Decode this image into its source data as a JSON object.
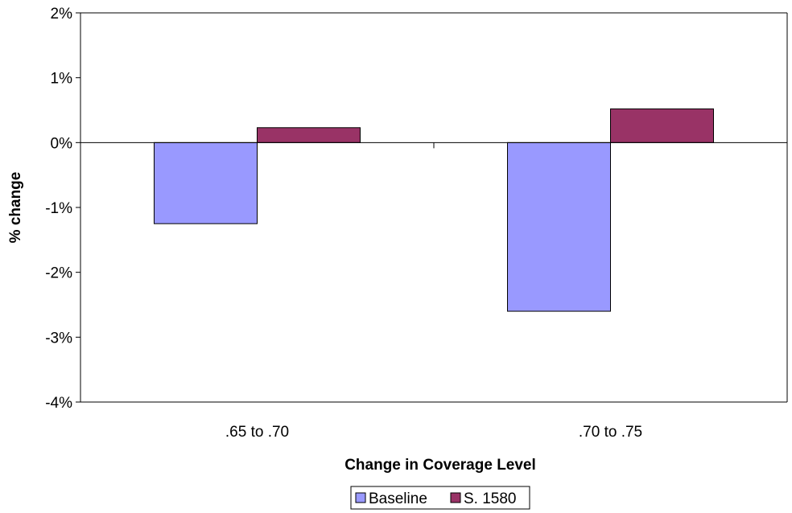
{
  "chart_data": {
    "type": "bar",
    "title": "",
    "xlabel": "Change in Coverage Level",
    "ylabel": "% change",
    "categories": [
      ".65 to .70",
      ".70 to .75"
    ],
    "series": [
      {
        "name": "Baseline",
        "values": [
          -1.25,
          -2.6
        ],
        "color": "#9999ff"
      },
      {
        "name": "S. 1580",
        "values": [
          0.23,
          0.52
        ],
        "color": "#993366"
      }
    ],
    "ylim": [
      -4,
      2
    ],
    "yticks": [
      2,
      1,
      0,
      -1,
      -2,
      -3,
      -4
    ],
    "ytick_format": "percent",
    "grid": false,
    "legend_position": "bottom-center"
  }
}
